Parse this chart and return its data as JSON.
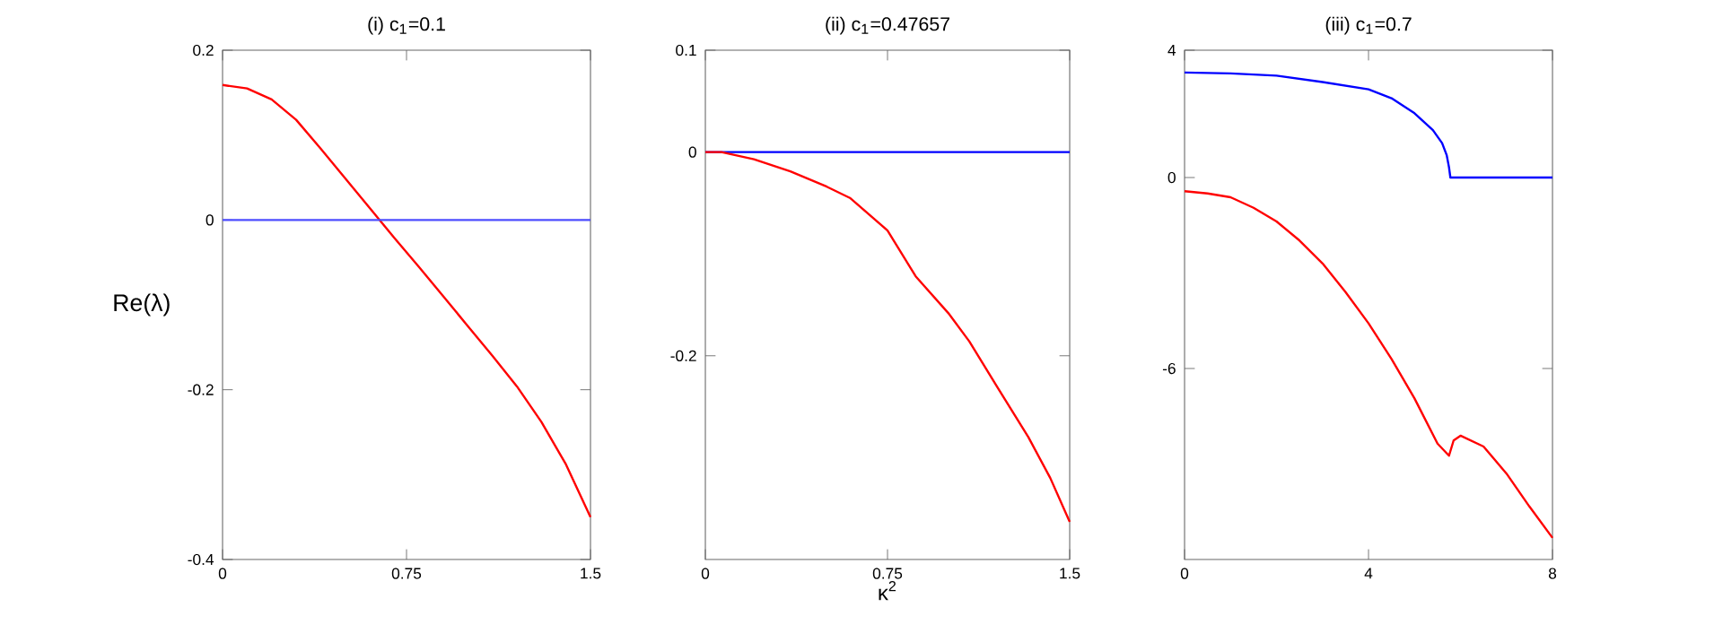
{
  "chart_data": [
    {
      "type": "line",
      "title": "(i) c$_{1}$=0.1",
      "ylabel": "Re(λ)",
      "xlim": [
        0,
        1.5
      ],
      "ylim": [
        -0.4,
        0.2
      ],
      "xticks": [
        0,
        0.75,
        1.5
      ],
      "yticks": [
        -0.4,
        -0.2,
        0,
        0.2
      ],
      "series": [
        {
          "color": "#ff0000",
          "x": [
            0,
            0.1,
            0.2,
            0.3,
            0.4,
            0.5,
            0.6,
            0.7,
            0.8,
            0.9,
            1.0,
            1.1,
            1.2,
            1.3,
            1.4,
            1.5
          ],
          "values": [
            0.159,
            0.155,
            0.142,
            0.118,
            0.084,
            0.049,
            0.014,
            -0.021,
            -0.055,
            -0.09,
            -0.125,
            -0.16,
            -0.196,
            -0.238,
            -0.288,
            -0.35
          ]
        },
        {
          "color": "#4d4dff",
          "x": [
            0,
            1.5
          ],
          "values": [
            0,
            0
          ]
        }
      ]
    },
    {
      "type": "line",
      "title": "(ii) c$_{1}$=0.47657",
      "xlabel": "κ$^{2}$",
      "xlim": [
        0,
        1.5
      ],
      "ylim": [
        -0.4,
        0.1
      ],
      "xticks": [
        0,
        0.75,
        1.5
      ],
      "yticks": [
        -0.2,
        0,
        0.1
      ],
      "series": [
        {
          "color": "#0000ff",
          "x": [
            0,
            1.5
          ],
          "values": [
            0,
            0
          ]
        },
        {
          "color": "#ff0000",
          "x": [
            0,
            0.066,
            0.2,
            0.35,
            0.5,
            0.595,
            0.75,
            0.866,
            1.0,
            1.087,
            1.2,
            1.33,
            1.42,
            1.5
          ],
          "values": [
            0,
            0,
            -0.007,
            -0.019,
            -0.034,
            -0.045,
            -0.077,
            -0.122,
            -0.158,
            -0.186,
            -0.23,
            -0.28,
            -0.32,
            -0.363
          ]
        }
      ]
    },
    {
      "type": "line",
      "title": "(iii) c$_{1}$=0.7",
      "xlim": [
        0,
        8
      ],
      "ylim": [
        -12,
        4
      ],
      "xticks": [
        0,
        4,
        8
      ],
      "yticks": [
        -6,
        0,
        4
      ],
      "series": [
        {
          "color": "#0000ff",
          "x": [
            0,
            1,
            2,
            3,
            4,
            4.5,
            5,
            5.4,
            5.6,
            5.7,
            5.75,
            5.78,
            8
          ],
          "values": [
            3.3,
            3.27,
            3.2,
            3.0,
            2.77,
            2.49,
            2.02,
            1.49,
            1.08,
            0.7,
            0.32,
            0,
            0
          ]
        },
        {
          "color": "#ff0000",
          "x": [
            0,
            0.5,
            1,
            1.5,
            2,
            2.5,
            3,
            3.5,
            4,
            4.5,
            5,
            5.5,
            5.75,
            5.85,
            6,
            6.5,
            7,
            7.5,
            8
          ],
          "values": [
            -0.43,
            -0.5,
            -0.62,
            -0.95,
            -1.38,
            -1.98,
            -2.7,
            -3.6,
            -4.58,
            -5.7,
            -6.94,
            -8.36,
            -8.74,
            -8.26,
            -8.11,
            -8.45,
            -9.3,
            -10.34,
            -11.32
          ]
        }
      ]
    }
  ]
}
